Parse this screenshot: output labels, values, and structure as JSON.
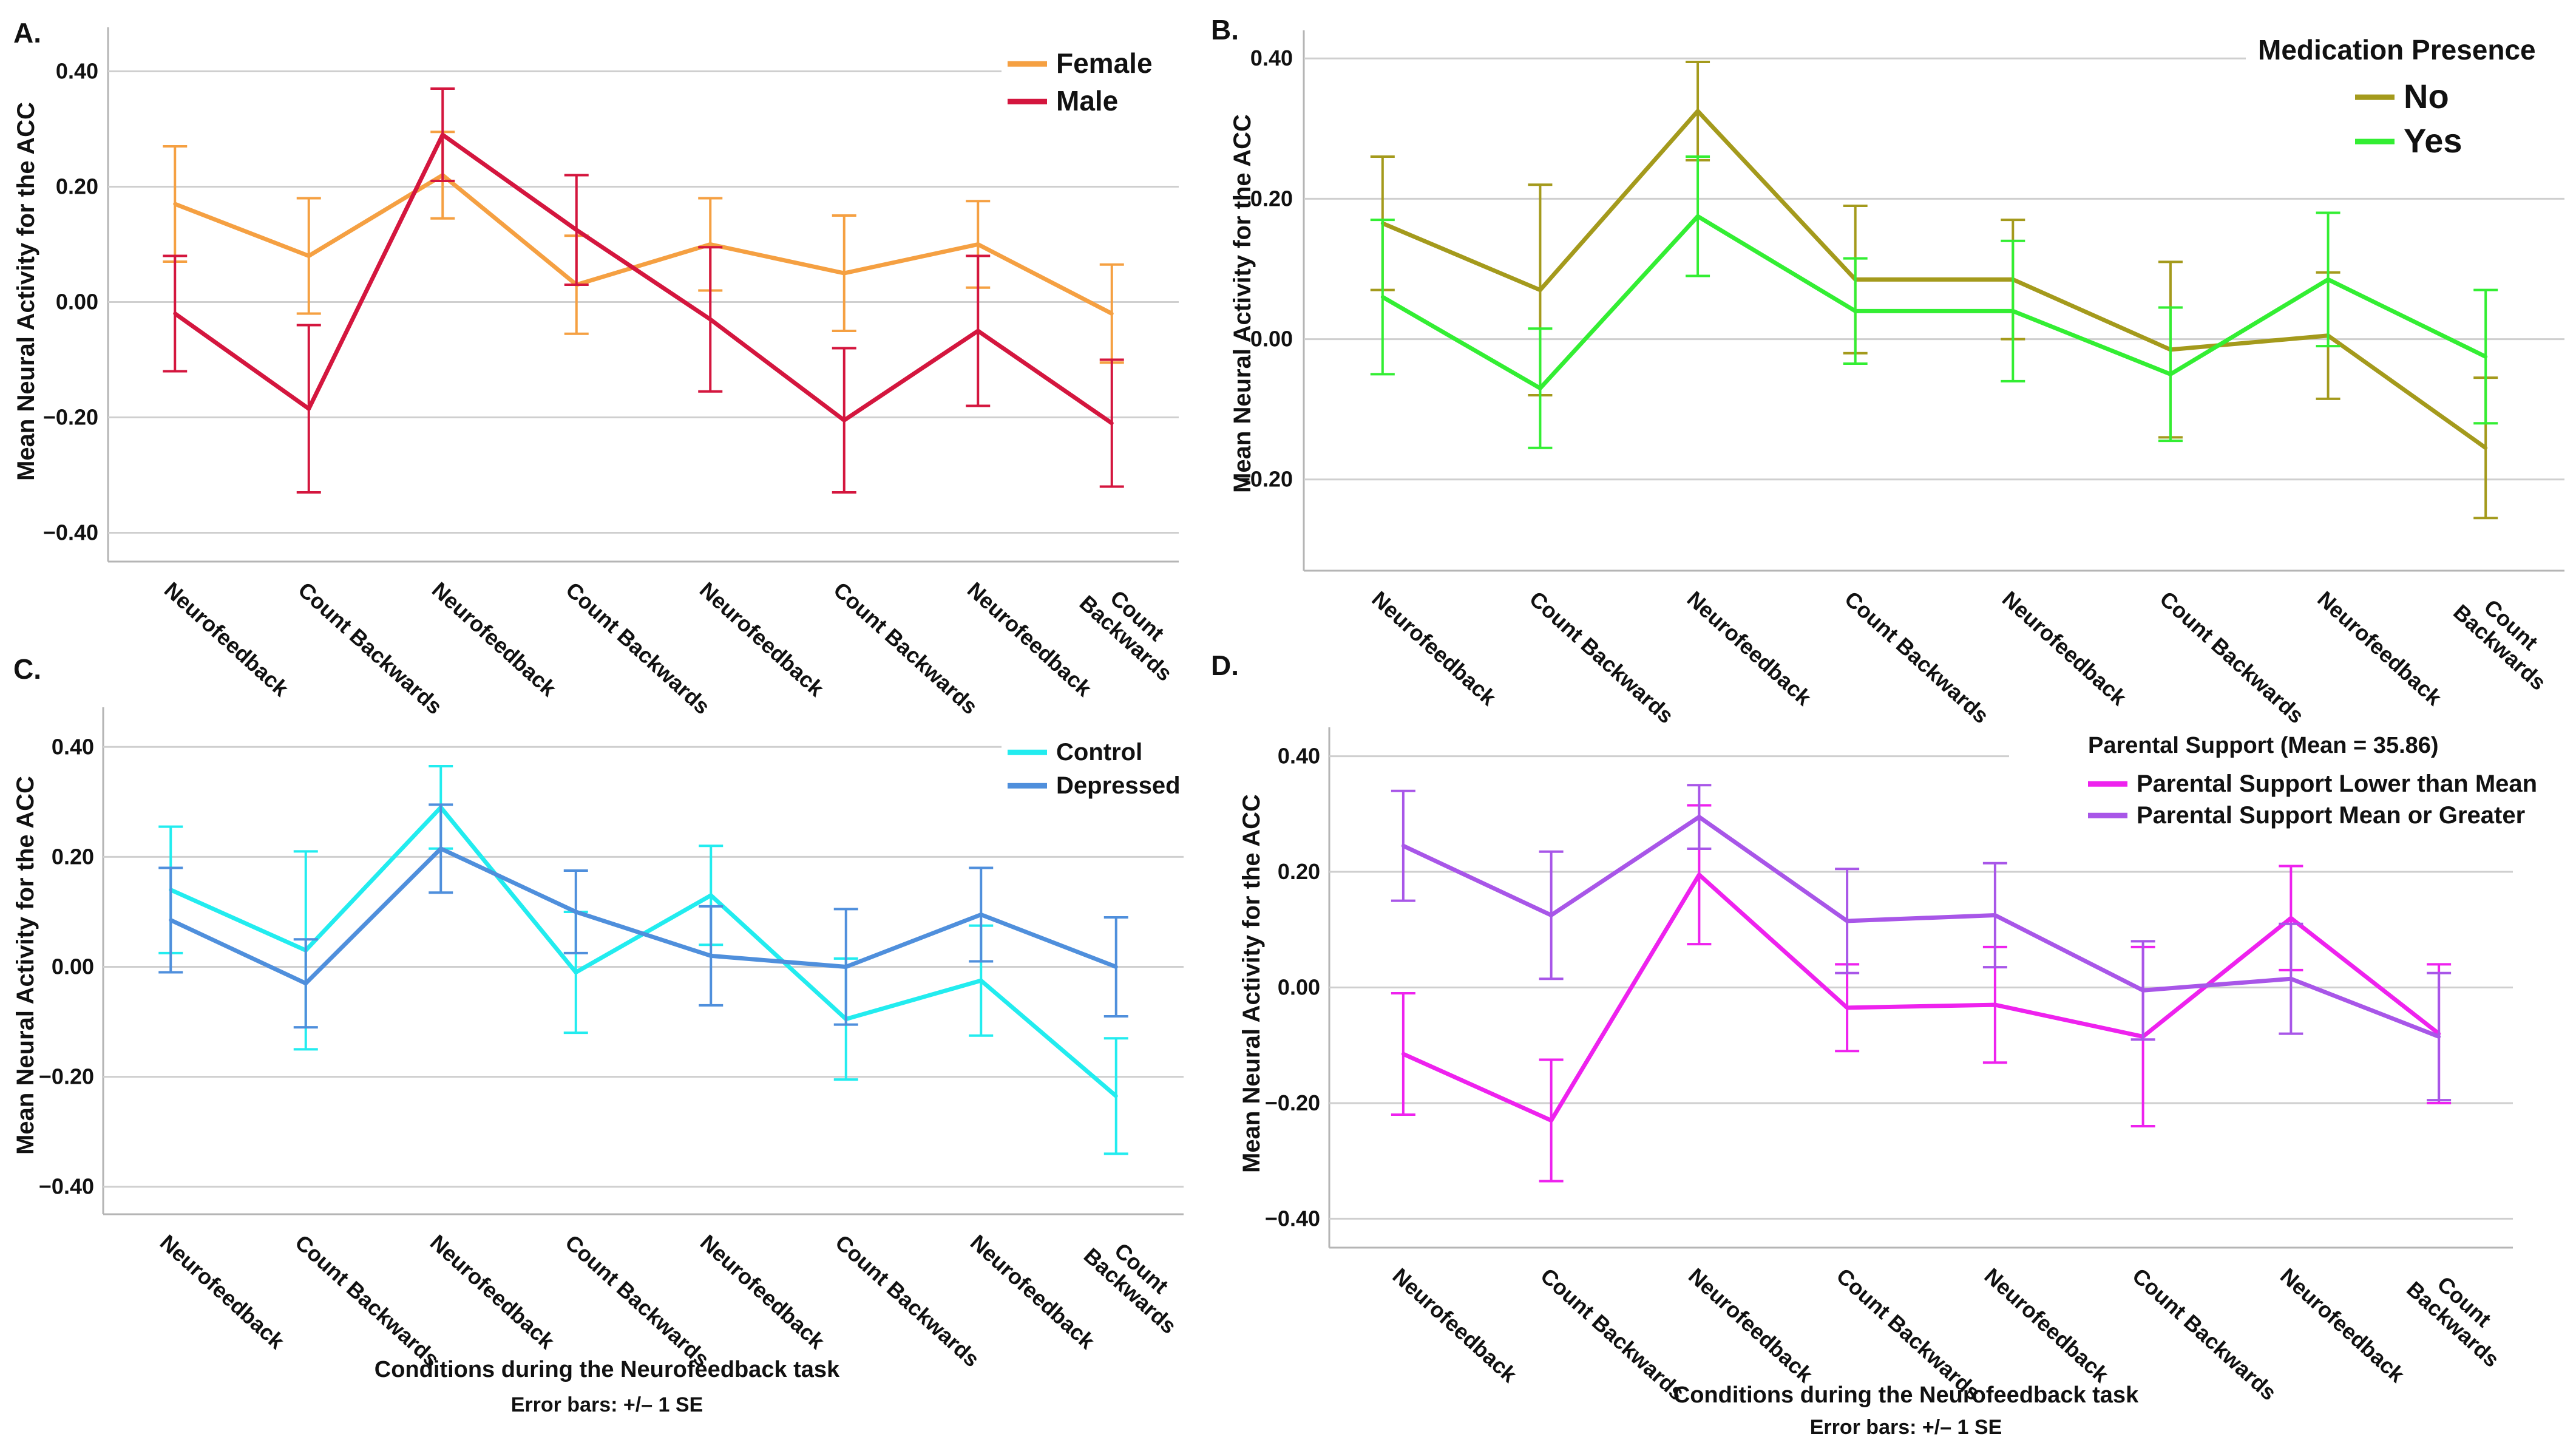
{
  "figure": {
    "xlabel": "Conditions during the Neurofeedback task",
    "error_note": "Error bars: +/– 1 SE"
  },
  "chart_data": [
    {
      "panel": "A.",
      "type": "line",
      "ylabel": "Mean Neural Activity for the ACC",
      "ylim": [
        -0.45,
        0.45
      ],
      "yticks": [
        0.4,
        0.2,
        0.0,
        -0.2,
        -0.4
      ],
      "ytick_labels": [
        "0.40",
        "0.20",
        "0.00",
        "−0.20",
        "−0.40"
      ],
      "categories": [
        "Neurofeedback",
        "Count Backwards",
        "Neurofeedback",
        "Count Backwards",
        "Neurofeedback",
        "Count Backwards",
        "Neurofeedback",
        "Count Backwards"
      ],
      "legend_title": "",
      "legend_position": "top-right",
      "series": [
        {
          "name": "Female",
          "color": "#f5a042",
          "values": [
            0.17,
            0.08,
            0.22,
            0.03,
            0.1,
            0.05,
            0.1,
            -0.02
          ],
          "se": [
            0.1,
            0.1,
            0.075,
            0.085,
            0.08,
            0.1,
            0.075,
            0.085
          ]
        },
        {
          "name": "Male",
          "color": "#d4163e",
          "values": [
            -0.02,
            -0.185,
            0.29,
            0.125,
            -0.03,
            -0.205,
            -0.05,
            -0.21
          ],
          "se": [
            0.1,
            0.145,
            0.08,
            0.095,
            0.125,
            0.125,
            0.13,
            0.11
          ]
        }
      ]
    },
    {
      "panel": "B.",
      "type": "line",
      "ylabel": "Mean Neural Activity for the ACC",
      "ylim": [
        -0.33,
        0.44
      ],
      "yticks": [
        0.4,
        0.2,
        0.0,
        -0.2
      ],
      "ytick_labels": [
        "0.40",
        "0.20",
        "0.00",
        "−0.20"
      ],
      "categories": [
        "Neurofeedback",
        "Count Backwards",
        "Neurofeedback",
        "Count Backwards",
        "Neurofeedback",
        "Count Backwards",
        "Neurofeedback",
        "Count Backwards"
      ],
      "legend_title": "Medication Presence",
      "legend_position": "top-right",
      "series": [
        {
          "name": "No",
          "color": "#a49a1c",
          "values": [
            0.165,
            0.07,
            0.325,
            0.085,
            0.085,
            -0.015,
            0.005,
            -0.155
          ],
          "se": [
            0.095,
            0.15,
            0.07,
            0.105,
            0.085,
            0.125,
            0.09,
            0.1
          ]
        },
        {
          "name": "Yes",
          "color": "#33ee33",
          "values": [
            0.06,
            -0.07,
            0.175,
            0.04,
            0.04,
            -0.05,
            0.085,
            -0.025
          ],
          "se": [
            0.11,
            0.085,
            0.085,
            0.075,
            0.1,
            0.095,
            0.095,
            0.095
          ]
        }
      ]
    },
    {
      "panel": "C.",
      "type": "line",
      "ylabel": "Mean Neural Activity for the ACC",
      "ylim": [
        -0.45,
        0.45
      ],
      "yticks": [
        0.4,
        0.2,
        0.0,
        -0.2,
        -0.4
      ],
      "ytick_labels": [
        "0.40",
        "0.20",
        "0.00",
        "−0.20",
        "−0.40"
      ],
      "categories": [
        "Neurofeedback",
        "Count Backwards",
        "Neurofeedback",
        "Count Backwards",
        "Neurofeedback",
        "Count Backwards",
        "Neurofeedback",
        "Count Backwards"
      ],
      "legend_title": "",
      "legend_position": "top-right",
      "series": [
        {
          "name": "Control",
          "color": "#22ecef",
          "values": [
            0.14,
            0.03,
            0.29,
            -0.01,
            0.13,
            -0.095,
            -0.025,
            -0.235
          ],
          "se": [
            0.115,
            0.18,
            0.075,
            0.11,
            0.09,
            0.11,
            0.1,
            0.105
          ]
        },
        {
          "name": "Depressed",
          "color": "#4f8fdc",
          "values": [
            0.085,
            -0.03,
            0.215,
            0.1,
            0.02,
            0.0,
            0.095,
            0.0
          ],
          "se": [
            0.095,
            0.08,
            0.08,
            0.075,
            0.09,
            0.105,
            0.085,
            0.09
          ]
        }
      ]
    },
    {
      "panel": "D.",
      "type": "line",
      "ylabel": "Mean Neural Activity for the ACC",
      "ylim": [
        -0.45,
        0.45
      ],
      "yticks": [
        0.4,
        0.2,
        0.0,
        -0.2,
        -0.4
      ],
      "ytick_labels": [
        "0.40",
        "0.20",
        "0.00",
        "−0.20",
        "−0.40"
      ],
      "categories": [
        "Neurofeedback",
        "Count Backwards",
        "Neurofeedback",
        "Count Backwards",
        "Neurofeedback",
        "Count Backwards",
        "Neurofeedback",
        "Count Backwards"
      ],
      "legend_title": "Parental Support (Mean = 35.86)",
      "legend_position": "top-right",
      "series": [
        {
          "name": "Parental Support Lower than Mean",
          "color": "#ee22ee",
          "values": [
            -0.115,
            -0.23,
            0.195,
            -0.035,
            -0.03,
            -0.085,
            0.12,
            -0.08
          ],
          "se": [
            0.105,
            0.105,
            0.12,
            0.075,
            0.1,
            0.155,
            0.09,
            0.12
          ]
        },
        {
          "name": "Parental Support Mean or Greater",
          "color": "#a856e8",
          "values": [
            0.245,
            0.125,
            0.295,
            0.115,
            0.125,
            -0.005,
            0.015,
            -0.085
          ],
          "se": [
            0.095,
            0.11,
            0.055,
            0.09,
            0.09,
            0.085,
            0.095,
            0.11
          ]
        }
      ]
    }
  ]
}
